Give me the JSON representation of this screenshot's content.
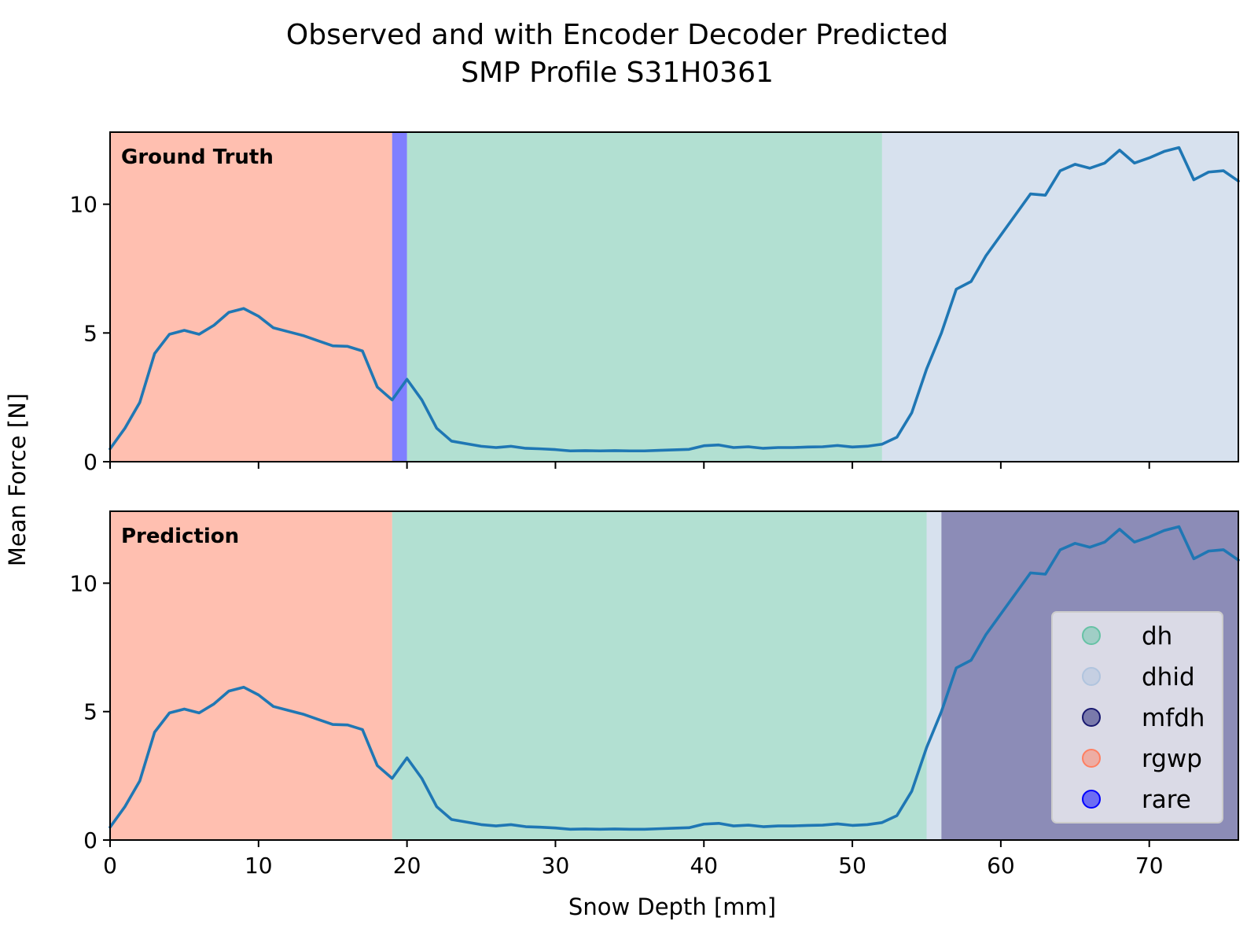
{
  "chart_data": {
    "type": "line",
    "title": "Observed and with Encoder Decoder Predicted",
    "subtitle": "SMP Profile S31H0361",
    "xlabel": "Snow Depth [mm]",
    "ylabel": "Mean Force [N]",
    "xlim": [
      0,
      76
    ],
    "ylim": [
      0,
      12.8
    ],
    "xticks": [
      "0",
      "10",
      "20",
      "30",
      "40",
      "50",
      "60",
      "70"
    ],
    "yticks": [
      "0",
      "5",
      "10"
    ],
    "legend_position": "lower right",
    "grid": false,
    "line_color": "#1f77b4",
    "classes": [
      {
        "name": "dh",
        "color": "#66c2a5"
      },
      {
        "name": "dhid",
        "color": "#b0c4de"
      },
      {
        "name": "mfdh",
        "color": "#191970"
      },
      {
        "name": "rgwp",
        "color": "#ff7f61"
      },
      {
        "name": "rare",
        "color": "#0000ff"
      }
    ],
    "series": [
      {
        "x": [
          0,
          1,
          2,
          3,
          4,
          5,
          6,
          7,
          8,
          9,
          10,
          11,
          12,
          13,
          14,
          15,
          16,
          17,
          18,
          19,
          20,
          21,
          22,
          23,
          24,
          25,
          26,
          27,
          28,
          29,
          30,
          31,
          32,
          33,
          34,
          35,
          36,
          37,
          38,
          39,
          40,
          41,
          42,
          43,
          44,
          45,
          46,
          47,
          48,
          49,
          50,
          51,
          52,
          53,
          54,
          55,
          56,
          57,
          58,
          59,
          60,
          61,
          62,
          63,
          64,
          65,
          66,
          67,
          68,
          69,
          70,
          71,
          72,
          73,
          74,
          75,
          76
        ],
        "values": [
          0.5,
          1.3,
          2.3,
          4.2,
          4.95,
          5.1,
          4.95,
          5.3,
          5.8,
          5.95,
          5.65,
          5.2,
          5.05,
          4.9,
          4.7,
          4.5,
          4.48,
          4.3,
          2.9,
          2.4,
          3.2,
          2.4,
          1.3,
          0.8,
          0.7,
          0.6,
          0.55,
          0.6,
          0.52,
          0.5,
          0.47,
          0.42,
          0.43,
          0.42,
          0.43,
          0.42,
          0.42,
          0.44,
          0.46,
          0.48,
          0.62,
          0.65,
          0.55,
          0.58,
          0.52,
          0.55,
          0.55,
          0.57,
          0.58,
          0.63,
          0.57,
          0.6,
          0.68,
          0.95,
          1.9,
          3.6,
          5.0,
          6.7,
          7.0,
          8.0,
          8.8,
          9.6,
          10.4,
          10.35,
          11.3,
          11.55,
          11.4,
          11.6,
          12.1,
          11.6,
          11.8,
          12.05,
          12.2,
          10.95,
          11.25,
          11.3,
          10.9
        ]
      }
    ],
    "panels": [
      {
        "label": "Ground Truth",
        "segments": [
          {
            "class": "rgwp",
            "start": 0,
            "end": 19
          },
          {
            "class": "rare",
            "start": 19,
            "end": 20
          },
          {
            "class": "dh",
            "start": 20,
            "end": 52
          },
          {
            "class": "dhid",
            "start": 52,
            "end": 76
          }
        ]
      },
      {
        "label": "Prediction",
        "segments": [
          {
            "class": "rgwp",
            "start": 0,
            "end": 19
          },
          {
            "class": "dh",
            "start": 19,
            "end": 55
          },
          {
            "class": "dhid",
            "start": 55,
            "end": 56
          },
          {
            "class": "mfdh",
            "start": 56,
            "end": 76
          }
        ]
      }
    ]
  }
}
